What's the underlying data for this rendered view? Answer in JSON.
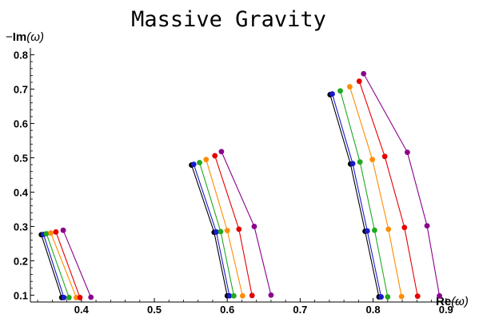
{
  "chart_data": {
    "type": "line",
    "title": "Massive Gravity",
    "xlabel": {
      "bold": "Re",
      "rest": "(ω)"
    },
    "ylabel": {
      "prefix": "−",
      "bold": "Im",
      "rest": "(ω)"
    },
    "xlim": [
      0.33,
      0.92
    ],
    "ylim": [
      0.08,
      0.82
    ],
    "x_ticks": [
      {
        "value": 0.4,
        "label": "0.4"
      },
      {
        "value": 0.5,
        "label": "0.5"
      },
      {
        "value": 0.6,
        "label": "0.6"
      },
      {
        "value": 0.7,
        "label": "0.7"
      },
      {
        "value": 0.8,
        "label": "0.8"
      },
      {
        "value": 0.9,
        "label": "0.9"
      }
    ],
    "y_ticks": [
      {
        "value": 0.1,
        "label": "0.1"
      },
      {
        "value": 0.2,
        "label": "0.2"
      },
      {
        "value": 0.3,
        "label": "0.3"
      },
      {
        "value": 0.4,
        "label": "0.4"
      },
      {
        "value": 0.5,
        "label": "0.5"
      },
      {
        "value": 0.6,
        "label": "0.6"
      },
      {
        "value": 0.7,
        "label": "0.7"
      },
      {
        "value": 0.8,
        "label": "0.8"
      }
    ],
    "grid": false,
    "series": [
      {
        "color": "#000000",
        "points": [
          [
            0.373,
            0.093
          ],
          [
            0.345,
            0.276
          ],
          [
            0.6,
            0.098
          ],
          [
            0.582,
            0.283
          ],
          [
            0.551,
            0.479
          ],
          [
            0.808,
            0.095
          ],
          [
            0.789,
            0.286
          ],
          [
            0.769,
            0.482
          ],
          [
            0.741,
            0.684
          ]
        ]
      },
      {
        "color": "#1a1acc",
        "points": [
          [
            0.376,
            0.093
          ],
          [
            0.348,
            0.277
          ],
          [
            0.603,
            0.098
          ],
          [
            0.585,
            0.284
          ],
          [
            0.554,
            0.481
          ],
          [
            0.811,
            0.095
          ],
          [
            0.792,
            0.287
          ],
          [
            0.772,
            0.483
          ],
          [
            0.744,
            0.686
          ]
        ]
      },
      {
        "color": "#1faa1f",
        "points": [
          [
            0.383,
            0.093
          ],
          [
            0.352,
            0.279
          ],
          [
            0.609,
            0.098
          ],
          [
            0.591,
            0.285
          ],
          [
            0.562,
            0.486
          ],
          [
            0.82,
            0.095
          ],
          [
            0.802,
            0.289
          ],
          [
            0.782,
            0.488
          ],
          [
            0.755,
            0.695
          ]
        ]
      },
      {
        "color": "#ff8c00",
        "points": [
          [
            0.393,
            0.093
          ],
          [
            0.358,
            0.281
          ],
          [
            0.621,
            0.098
          ],
          [
            0.6,
            0.288
          ],
          [
            0.571,
            0.495
          ],
          [
            0.839,
            0.096
          ],
          [
            0.821,
            0.292
          ],
          [
            0.799,
            0.495
          ],
          [
            0.768,
            0.707
          ]
        ]
      },
      {
        "color": "#e60000",
        "points": [
          [
            0.398,
            0.093
          ],
          [
            0.365,
            0.284
          ],
          [
            0.634,
            0.099
          ],
          [
            0.616,
            0.292
          ],
          [
            0.583,
            0.506
          ],
          [
            0.861,
            0.097
          ],
          [
            0.843,
            0.297
          ],
          [
            0.816,
            0.504
          ],
          [
            0.781,
            0.723
          ]
        ]
      },
      {
        "color": "#8b008b",
        "points": [
          [
            0.413,
            0.094
          ],
          [
            0.375,
            0.289
          ],
          [
            0.66,
            0.1
          ],
          [
            0.637,
            0.3
          ],
          [
            0.592,
            0.518
          ],
          [
            0.891,
            0.098
          ],
          [
            0.874,
            0.302
          ],
          [
            0.847,
            0.516
          ],
          [
            0.787,
            0.745
          ]
        ]
      }
    ],
    "segment_groups": [
      [
        0,
        1
      ],
      [
        2,
        3,
        4
      ],
      [
        5,
        6,
        7,
        8
      ]
    ]
  }
}
